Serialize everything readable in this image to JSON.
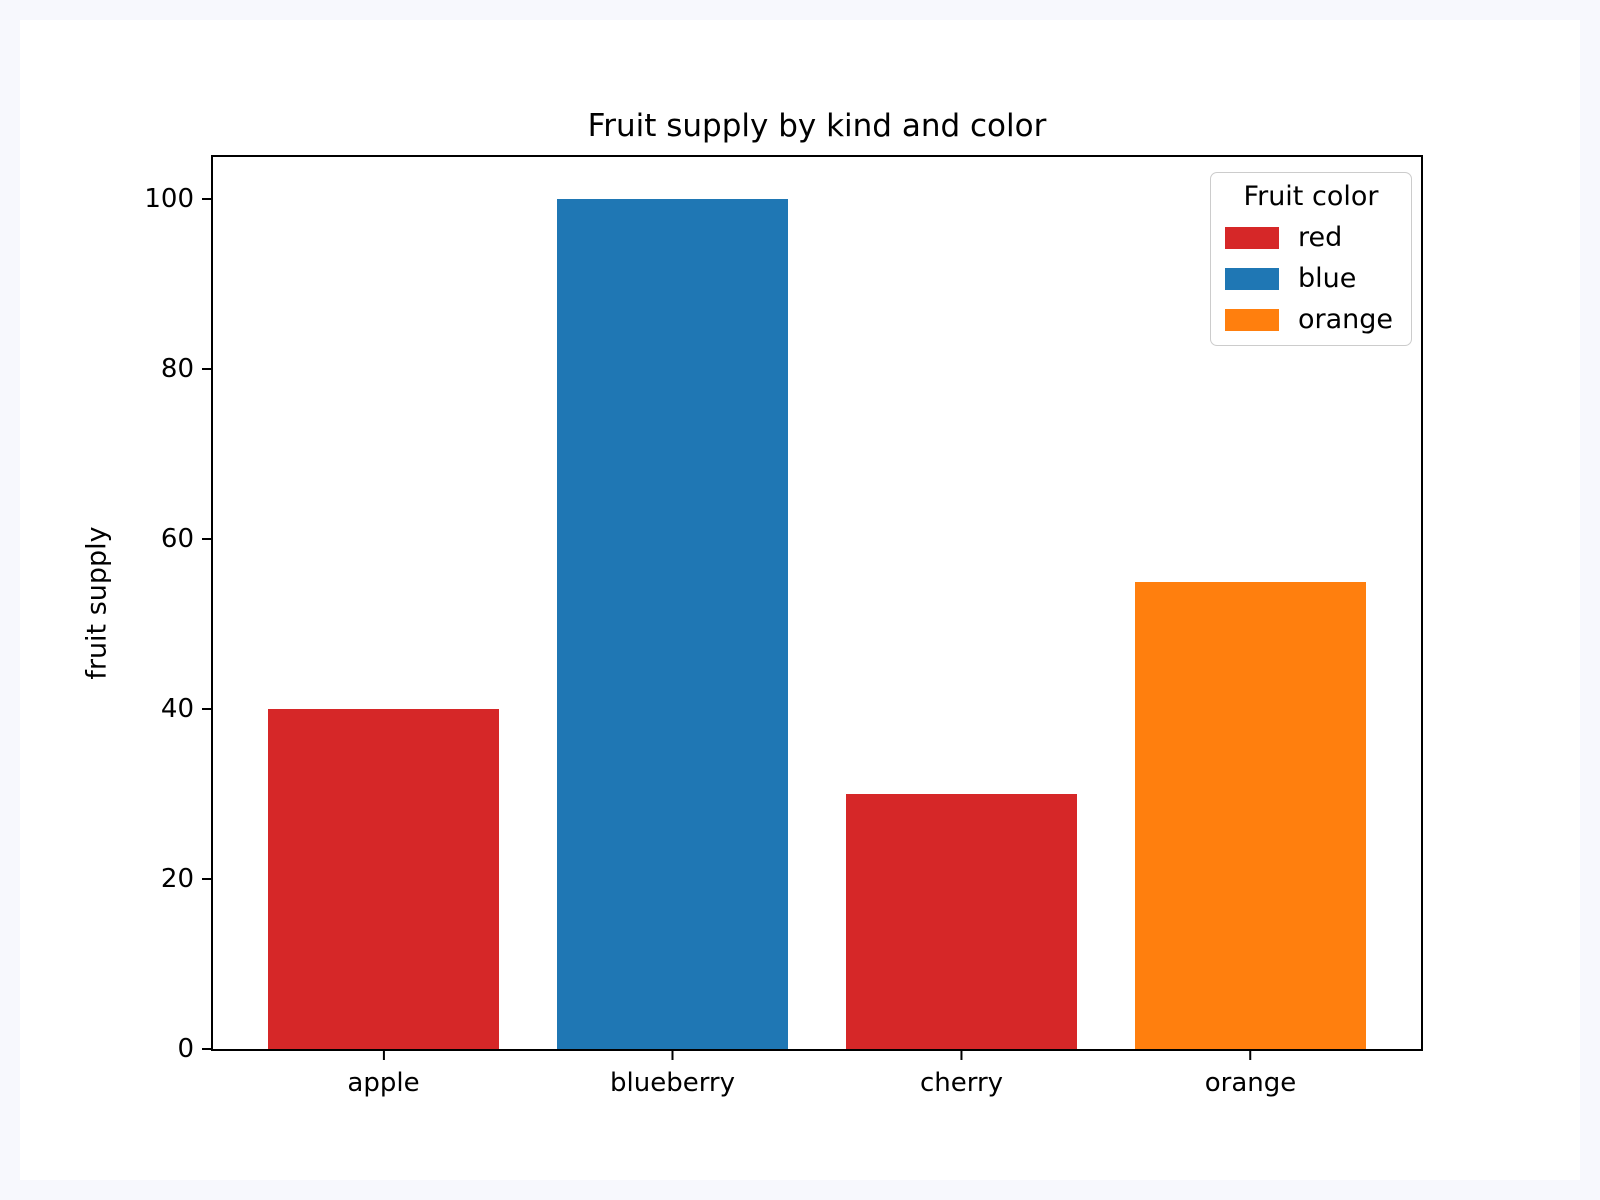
{
  "chart_data": {
    "type": "bar",
    "title": "Fruit supply by kind and color",
    "xlabel": "",
    "ylabel": "fruit supply",
    "categories": [
      "apple",
      "blueberry",
      "cherry",
      "orange"
    ],
    "values": [
      40,
      100,
      30,
      55
    ],
    "bar_colors": [
      "#d62728",
      "#1f77b4",
      "#d62728",
      "#ff7f0e"
    ],
    "ylim": [
      0,
      105
    ],
    "yticks": [
      0,
      20,
      40,
      60,
      80,
      100
    ],
    "grid": false,
    "legend": {
      "title": "Fruit color",
      "position": "upper right",
      "entries": [
        {
          "label": "red",
          "color": "#d62728"
        },
        {
          "label": "blue",
          "color": "#1f77b4"
        },
        {
          "label": "orange",
          "color": "#ff7f0e"
        }
      ]
    }
  },
  "colors": {
    "page_background": "#f7f8fd",
    "figure_background": "#ffffff",
    "axis": "#000000",
    "text": "#000000",
    "legend_border": "#cccccc"
  }
}
